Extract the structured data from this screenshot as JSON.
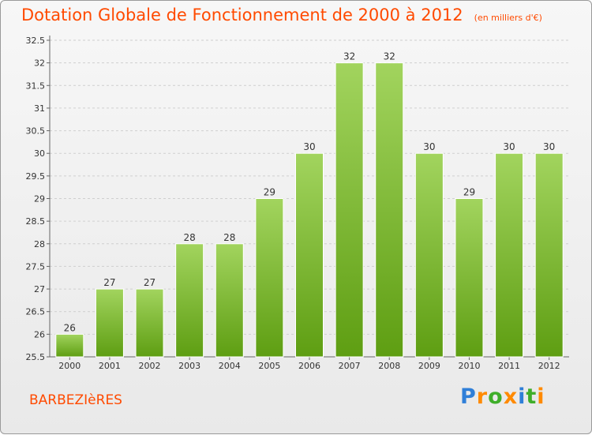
{
  "title": "Dotation Globale de Fonctionnement de 2000 à 2012",
  "subtitle": "(en milliers d'€)",
  "commune": "BARBEZIèRES",
  "brand": {
    "text": "Proxiti",
    "letter_colors": [
      "#2f7fd8",
      "#ff8a00",
      "#3fae2a",
      "#ff8a00",
      "#2f7fd8",
      "#3fae2a",
      "#ff8a00"
    ]
  },
  "colors": {
    "bar_top": "#a2d45e",
    "bar_bottom": "#5e9e12",
    "accent": "#ff4a00"
  },
  "chart_data": {
    "type": "bar",
    "title": "Dotation Globale de Fonctionnement de 2000 à 2012",
    "subtitle": "(en milliers d'€)",
    "categories": [
      "2000",
      "2001",
      "2002",
      "2003",
      "2004",
      "2005",
      "2006",
      "2007",
      "2008",
      "2009",
      "2010",
      "2011",
      "2012"
    ],
    "values": [
      26,
      27,
      27,
      28,
      28,
      29,
      30,
      32,
      32,
      30,
      29,
      30,
      30
    ],
    "ylim": [
      25.5,
      32.5
    ],
    "yticks": [
      "25.5",
      "26",
      "26.5",
      "27",
      "27.5",
      "28",
      "28.5",
      "29",
      "29.5",
      "30",
      "30.5",
      "31",
      "31.5",
      "32",
      "32.5"
    ],
    "grid": true,
    "legend": "none"
  }
}
